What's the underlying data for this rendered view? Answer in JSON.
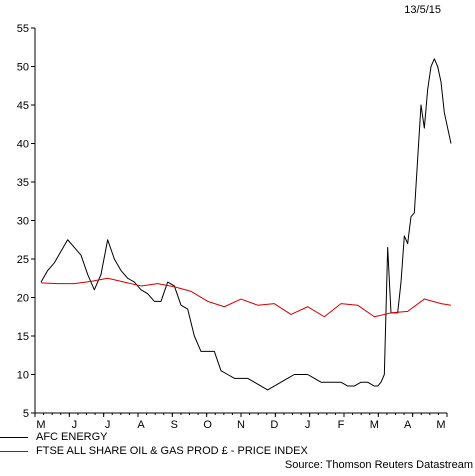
{
  "chart_data": {
    "type": "line",
    "date_label": "13/5/15",
    "source": "Source: Thomson Reuters Datastream",
    "ylim": [
      5,
      55
    ],
    "yticks": [
      5,
      10,
      15,
      20,
      25,
      30,
      35,
      40,
      45,
      50,
      55
    ],
    "xticks": [
      "M",
      "J",
      "J",
      "A",
      "S",
      "O",
      "N",
      "D",
      "J",
      "F",
      "M",
      "A",
      "M"
    ],
    "grid": false,
    "legend_position": "bottom-left",
    "series": [
      {
        "name": "AFC ENERGY",
        "color": "#000000",
        "x": [
          0,
          0.2,
          0.4,
          0.6,
          0.8,
          1.0,
          1.2,
          1.4,
          1.6,
          1.8,
          2.0,
          2.2,
          2.4,
          2.6,
          2.8,
          3.0,
          3.2,
          3.4,
          3.6,
          3.8,
          4.0,
          4.2,
          4.4,
          4.6,
          4.8,
          5.0,
          5.2,
          5.4,
          5.6,
          5.8,
          6.0,
          6.2,
          6.4,
          6.6,
          6.8,
          7.0,
          7.2,
          7.4,
          7.6,
          7.8,
          8.0,
          8.2,
          8.4,
          8.6,
          8.8,
          9.0,
          9.2,
          9.4,
          9.6,
          9.8,
          10.0,
          10.1,
          10.2,
          10.3,
          10.4,
          10.5,
          10.6,
          10.7,
          10.8,
          10.9,
          11.0,
          11.1,
          11.2,
          11.3,
          11.4,
          11.5,
          11.6,
          11.7,
          11.8,
          11.9,
          12.0,
          12.1,
          12.2,
          12.3
        ],
        "values": [
          22,
          23.5,
          24.5,
          26,
          27.5,
          26.5,
          25.5,
          23,
          21,
          23,
          27.5,
          25,
          23.5,
          22.5,
          22,
          21,
          20.5,
          19.5,
          19.5,
          22,
          21.5,
          19,
          18.5,
          15,
          13,
          13,
          13,
          10.5,
          10,
          9.5,
          9.5,
          9.5,
          9,
          8.5,
          8,
          8.5,
          9,
          9.5,
          10,
          10,
          10,
          9.5,
          9,
          9,
          9,
          9,
          8.5,
          8.5,
          9,
          9,
          8.5,
          8.5,
          9,
          10,
          26.5,
          18,
          18,
          18,
          22,
          28,
          27,
          30.5,
          31,
          38,
          45,
          42,
          47,
          50,
          51,
          50,
          48,
          44,
          42,
          40
        ]
      },
      {
        "name": "FTSE ALL SHARE OIL & GAS PROD £ - PRICE INDEX",
        "color": "#d40000",
        "x": [
          0,
          0.5,
          1.0,
          1.5,
          2.0,
          2.5,
          3.0,
          3.5,
          4.0,
          4.5,
          5.0,
          5.5,
          6.0,
          6.5,
          7.0,
          7.5,
          8.0,
          8.5,
          9.0,
          9.5,
          10.0,
          10.5,
          11.0,
          11.5,
          12.0,
          12.3
        ],
        "values": [
          21.9,
          21.8,
          21.8,
          22.1,
          22.5,
          22.0,
          21.5,
          21.8,
          21.4,
          20.8,
          19.5,
          18.8,
          19.8,
          19.0,
          19.2,
          17.8,
          18.8,
          17.5,
          19.2,
          19.0,
          17.5,
          18.0,
          18.2,
          19.8,
          19.2,
          19.0
        ]
      }
    ]
  }
}
